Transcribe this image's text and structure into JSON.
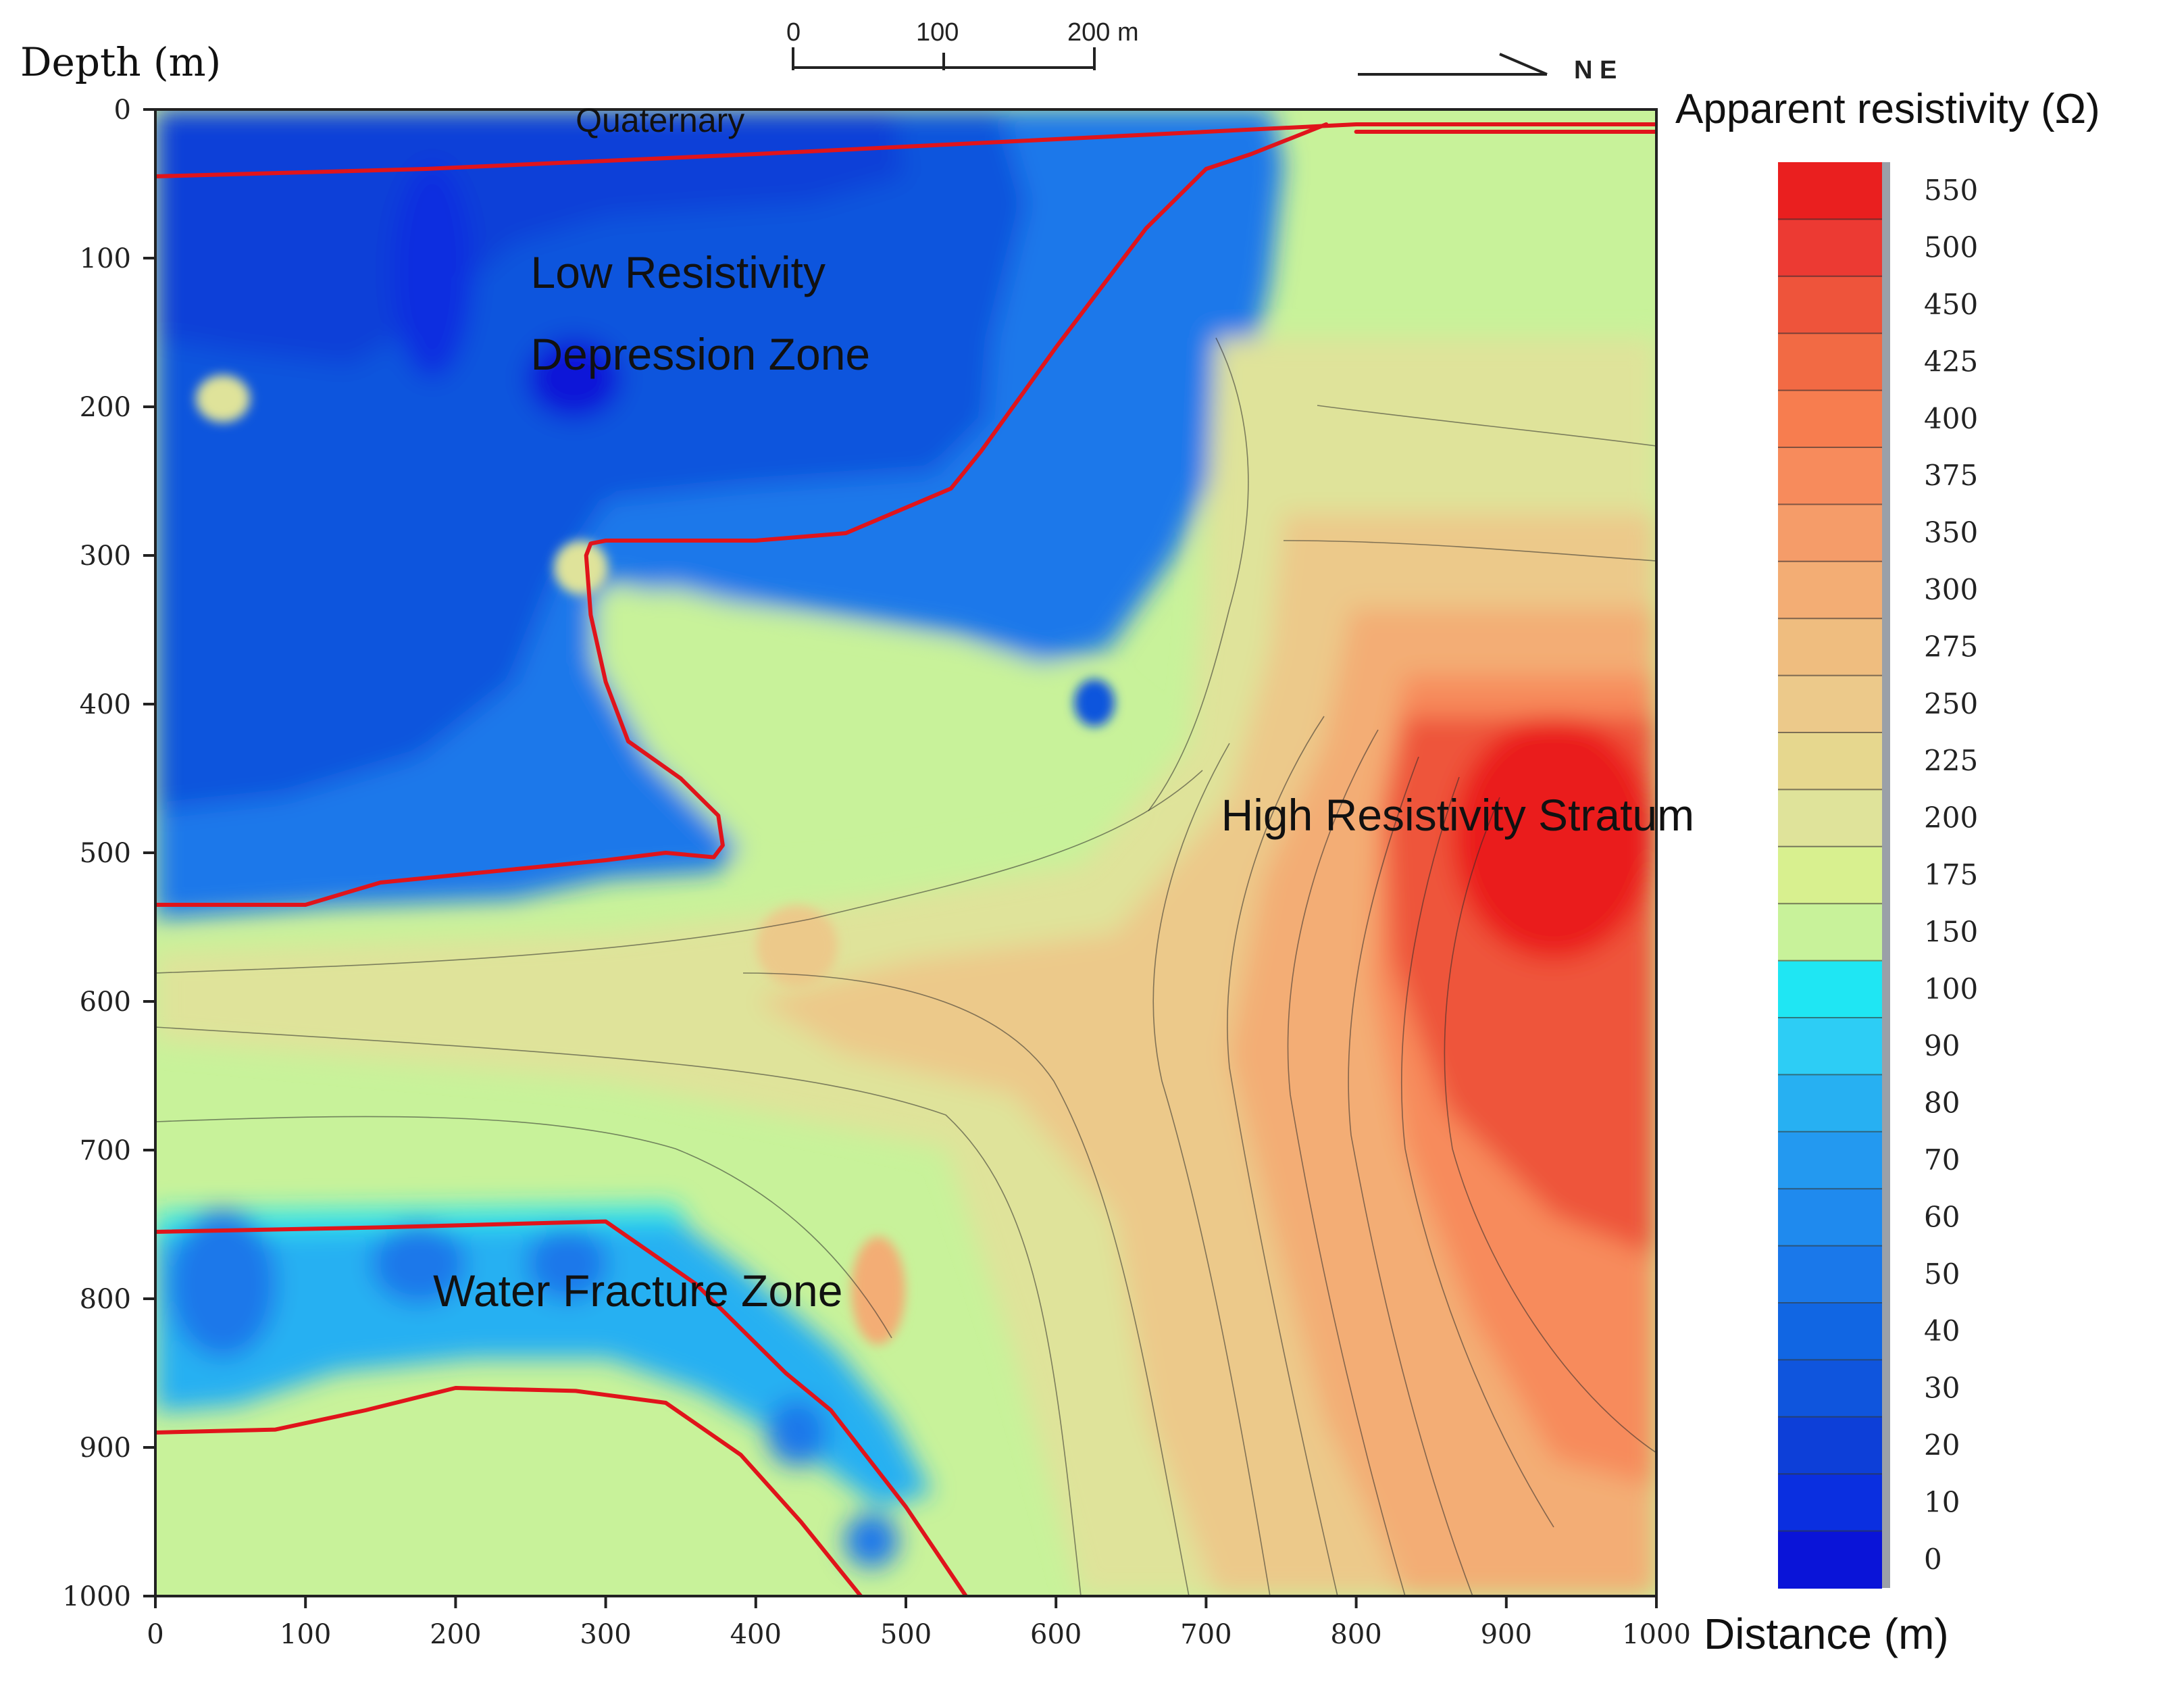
{
  "chart_data": {
    "type": "heatmap",
    "title": "",
    "xlabel": "Distance (m)",
    "ylabel": "Depth (m)",
    "xlim": [
      0,
      1000
    ],
    "ylim": [
      0,
      1000
    ],
    "y_inverted": true,
    "x_ticks": [
      0,
      100,
      200,
      300,
      400,
      500,
      600,
      700,
      800,
      900,
      1000
    ],
    "y_ticks": [
      0,
      100,
      200,
      300,
      400,
      500,
      600,
      700,
      800,
      900,
      1000
    ],
    "colorbar": {
      "label": "Apparent resistivity (Ω)",
      "levels": [
        0,
        10,
        20,
        30,
        40,
        50,
        60,
        70,
        80,
        90,
        100,
        150,
        175,
        200,
        225,
        250,
        275,
        300,
        350,
        375,
        400,
        425,
        450,
        500,
        550
      ],
      "colors": [
        "#0a14d8",
        "#0a2fe0",
        "#0d3fd8",
        "#0f55dd",
        "#1166e3",
        "#1a78ea",
        "#1f8aee",
        "#2399f0",
        "#27b0f2",
        "#2dcdf5",
        "#1fe6f3",
        "#c8f29a",
        "#d8f08f",
        "#dfe39a",
        "#e6d78e",
        "#ecc98a",
        "#efbd7f",
        "#f3ad74",
        "#f59c69",
        "#f78b5c",
        "#f77d4f",
        "#f26a44",
        "#ee543b",
        "#ec3a33",
        "#ea1f1f"
      ]
    },
    "scale_bar": {
      "ticks": [
        "0",
        "100",
        "200 m"
      ]
    },
    "direction_label": "N E",
    "annotations": [
      {
        "text": "Quaternary",
        "x": 280,
        "y": 15
      },
      {
        "text": "Low Resistivity",
        "x": 250,
        "y": 120
      },
      {
        "text": "Depression Zone",
        "x": 250,
        "y": 175
      },
      {
        "text": "High Resistivity Stratum",
        "x": 710,
        "y": 485
      },
      {
        "text": "Water Fracture Zone",
        "x": 185,
        "y": 805
      }
    ],
    "boundaries": [
      {
        "name": "Quaternary base",
        "points": [
          [
            0,
            45
          ],
          [
            180,
            40
          ],
          [
            400,
            30
          ],
          [
            700,
            15
          ],
          [
            800,
            10
          ],
          [
            1000,
            10
          ]
        ]
      },
      {
        "name": "Quaternary base east",
        "points": [
          [
            800,
            15
          ],
          [
            1000,
            15
          ]
        ]
      },
      {
        "name": "Low resistivity zone boundary",
        "points": [
          [
            0,
            535
          ],
          [
            100,
            535
          ],
          [
            150,
            520
          ],
          [
            250,
            510
          ],
          [
            300,
            505
          ],
          [
            340,
            500
          ],
          [
            372,
            503
          ],
          [
            378,
            495
          ],
          [
            375,
            475
          ],
          [
            350,
            450
          ],
          [
            315,
            425
          ],
          [
            300,
            385
          ],
          [
            290,
            340
          ],
          [
            287,
            300
          ],
          [
            290,
            292
          ],
          [
            300,
            290
          ],
          [
            400,
            290
          ],
          [
            460,
            285
          ],
          [
            530,
            255
          ],
          [
            550,
            230
          ],
          [
            600,
            160
          ],
          [
            660,
            80
          ],
          [
            700,
            40
          ],
          [
            730,
            30
          ],
          [
            780,
            10
          ]
        ]
      },
      {
        "name": "Water fracture zone top",
        "points": [
          [
            0,
            755
          ],
          [
            150,
            752
          ],
          [
            300,
            748
          ],
          [
            360,
            790
          ],
          [
            420,
            850
          ],
          [
            450,
            875
          ],
          [
            500,
            940
          ],
          [
            540,
            1000
          ]
        ]
      },
      {
        "name": "Water fracture zone bottom",
        "points": [
          [
            0,
            890
          ],
          [
            80,
            888
          ],
          [
            140,
            875
          ],
          [
            200,
            860
          ],
          [
            280,
            862
          ],
          [
            340,
            870
          ],
          [
            390,
            905
          ],
          [
            430,
            950
          ],
          [
            470,
            1000
          ]
        ]
      }
    ]
  }
}
